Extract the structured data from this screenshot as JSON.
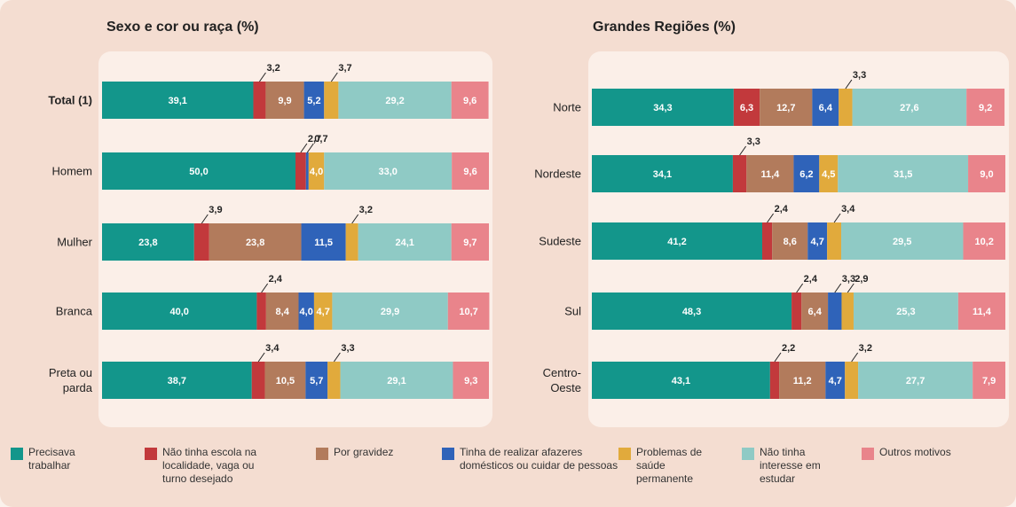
{
  "chart_data": [
    {
      "type": "stacked-bar-horizontal",
      "title": "Sexo e cor ou raça (%)",
      "xlim": [
        0,
        100
      ],
      "categories": [
        "Total (1)",
        "Homem",
        "Mulher",
        "Branca",
        "Preta ou parda"
      ],
      "series": [
        {
          "name": "Precisava trabalhar",
          "color": "#13968b",
          "values": [
            39.1,
            50.0,
            23.8,
            40.0,
            38.7
          ],
          "value_labels": [
            "39,1",
            "50,0",
            "23,8",
            "40,0",
            "38,7"
          ]
        },
        {
          "name": "Não tinha escola na localidade, vaga ou turno desejado",
          "color": "#c2393c",
          "values": [
            3.2,
            2.7,
            3.9,
            2.4,
            3.4
          ],
          "value_labels": [
            "3,2",
            "2,7",
            "3,9",
            "2,4",
            "3,4"
          ]
        },
        {
          "name": "Por gravidez",
          "color": "#b27b5c",
          "values": [
            9.9,
            null,
            23.8,
            8.4,
            10.5
          ],
          "value_labels": [
            "9,9",
            null,
            "23,8",
            "8,4",
            "10,5"
          ]
        },
        {
          "name": "Tinha de realizar afazeres domésticos ou cuidar de pessoas",
          "color": "#2f63b9",
          "values": [
            5.2,
            0.7,
            11.5,
            4.0,
            5.7
          ],
          "value_labels": [
            "5,2",
            "0,7",
            "11,5",
            "4,0",
            "5,7"
          ]
        },
        {
          "name": "Problemas de saúde permanente",
          "color": "#e1aa3c",
          "values": [
            3.7,
            4.0,
            3.2,
            4.7,
            3.3
          ],
          "value_labels": [
            "3,7",
            "4,0",
            "3,2",
            "4,7",
            "3,3"
          ]
        },
        {
          "name": "Não tinha interesse em estudar",
          "color": "#8fcac5",
          "values": [
            29.2,
            33.0,
            24.1,
            29.9,
            29.1
          ],
          "value_labels": [
            "29,2",
            "33,0",
            "24,1",
            "29,9",
            "29,1"
          ]
        },
        {
          "name": "Outros motivos",
          "color": "#e9848b",
          "values": [
            9.6,
            9.6,
            9.7,
            10.7,
            9.3
          ],
          "value_labels": [
            "9,6",
            "9,6",
            "9,7",
            "10,7",
            "9,3"
          ]
        }
      ]
    },
    {
      "type": "stacked-bar-horizontal",
      "title": "Grandes Regiões (%)",
      "xlim": [
        0,
        100
      ],
      "categories": [
        "Norte",
        "Nordeste",
        "Sudeste",
        "Sul",
        "Centro-Oeste"
      ],
      "series": [
        {
          "color": "#13968b",
          "values": [
            34.3,
            34.1,
            41.2,
            48.3,
            43.1
          ],
          "value_labels": [
            "34,3",
            "34,1",
            "41,2",
            "48,3",
            "43,1"
          ]
        },
        {
          "color": "#c2393c",
          "values": [
            6.3,
            3.3,
            2.4,
            2.4,
            2.2
          ],
          "value_labels": [
            "6,3",
            "3,3",
            "2,4",
            "2,4",
            "2,2"
          ]
        },
        {
          "color": "#b27b5c",
          "values": [
            12.7,
            11.4,
            8.6,
            6.4,
            11.2
          ],
          "value_labels": [
            "12,7",
            "11,4",
            "8,6",
            "6,4",
            "11,2"
          ]
        },
        {
          "color": "#2f63b9",
          "values": [
            6.4,
            6.2,
            4.7,
            3.3,
            4.7
          ],
          "value_labels": [
            "6,4",
            "6,2",
            "4,7",
            "3,3",
            "4,7"
          ]
        },
        {
          "color": "#e1aa3c",
          "values": [
            3.3,
            4.5,
            3.4,
            2.9,
            3.2
          ],
          "value_labels": [
            "3,3",
            "4,5",
            "3,4",
            "2,9",
            "3,2"
          ]
        },
        {
          "color": "#8fcac5",
          "values": [
            27.6,
            31.5,
            29.5,
            25.3,
            27.7
          ],
          "value_labels": [
            "27,6",
            "31,5",
            "29,5",
            "25,3",
            "27,7"
          ]
        },
        {
          "color": "#e9848b",
          "values": [
            9.2,
            9.0,
            10.2,
            11.4,
            7.9
          ],
          "value_labels": [
            "9,2",
            "9,0",
            "10,2",
            "11,4",
            "7,9"
          ]
        }
      ]
    }
  ]
}
